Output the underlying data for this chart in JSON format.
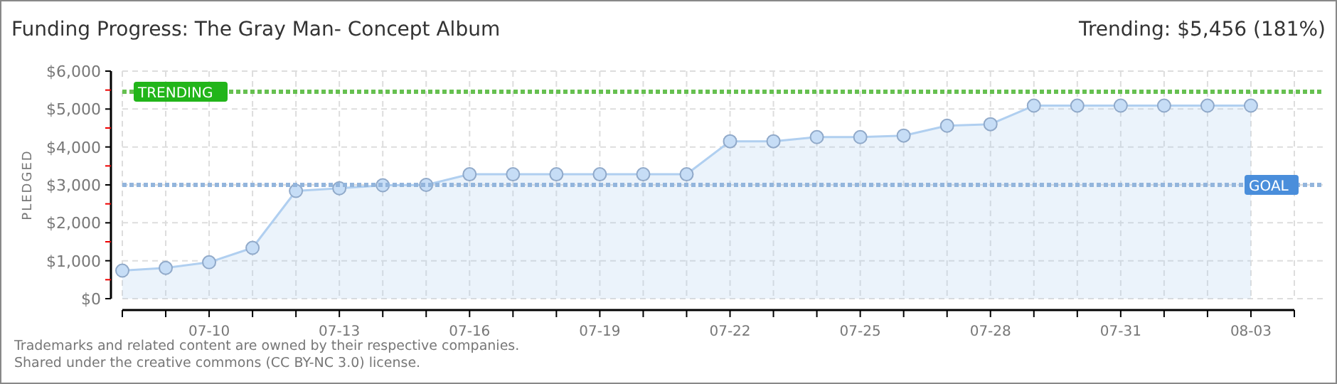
{
  "chart_data": {
    "type": "area",
    "title": "Funding Progress: The Gray Man- Concept Album",
    "subtitle": "Trending: $5,456 (181%)",
    "ylabel": "PLEDGED",
    "annotations": [
      "Trademarks and related content are owned by their respective companies.",
      "Shared under the creative commons (CC BY-NC 3.0) license."
    ],
    "x": [
      "--07-08",
      "--07-09",
      "--07-10",
      "--07-11",
      "--07-12",
      "--07-13",
      "--07-14",
      "--07-15",
      "--07-16",
      "--07-17",
      "--07-18",
      "--07-19",
      "--07-20",
      "--07-21",
      "--07-22",
      "--07-23",
      "--07-24",
      "--07-25",
      "--07-26",
      "--07-27",
      "--07-28",
      "--07-29",
      "--07-30",
      "--07-31",
      "--08-01",
      "--08-02",
      "--08-03"
    ],
    "series": [
      {
        "color": "#b0cff0",
        "values": [
          740,
          810,
          960,
          1340,
          2840,
          2910,
          2990,
          3000,
          3280,
          3280,
          3280,
          3280,
          3280,
          3280,
          4150,
          4150,
          4260,
          4260,
          4300,
          4560,
          4600,
          5090,
          5090,
          5090,
          5090,
          5090,
          5090
        ]
      }
    ],
    "xlim": [
      "--07-08",
      "--08-04"
    ],
    "xticks": [
      {
        "value": "--07-08",
        "label": null
      },
      {
        "value": "--07-09",
        "label": null
      },
      {
        "value": "--07-10",
        "label": "07-10"
      },
      {
        "value": "--07-11",
        "label": null
      },
      {
        "value": "--07-12",
        "label": null
      },
      {
        "value": "--07-13",
        "label": "07-13"
      },
      {
        "value": "--07-14",
        "label": null
      },
      {
        "value": "--07-15",
        "label": null
      },
      {
        "value": "--07-16",
        "label": "07-16"
      },
      {
        "value": "--07-17",
        "label": null
      },
      {
        "value": "--07-18",
        "label": null
      },
      {
        "value": "--07-19",
        "label": "07-19"
      },
      {
        "value": "--07-20",
        "label": null
      },
      {
        "value": "--07-21",
        "label": null
      },
      {
        "value": "--07-22",
        "label": "07-22"
      },
      {
        "value": "--07-23",
        "label": null
      },
      {
        "value": "--07-24",
        "label": null
      },
      {
        "value": "--07-25",
        "label": "07-25"
      },
      {
        "value": "--07-26",
        "label": null
      },
      {
        "value": "--07-27",
        "label": null
      },
      {
        "value": "--07-28",
        "label": "07-28"
      },
      {
        "value": "--07-29",
        "label": null
      },
      {
        "value": "--07-30",
        "label": null
      },
      {
        "value": "--07-31",
        "label": "07-31"
      },
      {
        "value": "--08-01",
        "label": null
      },
      {
        "value": "--08-02",
        "label": null
      },
      {
        "value": "--08-03",
        "label": "08-03"
      },
      {
        "value": "--08-04",
        "label": null
      }
    ],
    "ylim": [
      0,
      6000
    ],
    "yticks": [
      {
        "value": 0,
        "label": "$0"
      },
      {
        "value": 500,
        "label": null
      },
      {
        "value": 1000,
        "label": "$1,000"
      },
      {
        "value": 1500,
        "label": null
      },
      {
        "value": 2000,
        "label": "$2,000"
      },
      {
        "value": 2500,
        "label": null
      },
      {
        "value": 3000,
        "label": "$3,000"
      },
      {
        "value": 3500,
        "label": null
      },
      {
        "value": 4000,
        "label": "$4,000"
      },
      {
        "value": 4500,
        "label": null
      },
      {
        "value": 5000,
        "label": "$5,000"
      },
      {
        "value": 5500,
        "label": null
      },
      {
        "value": 6000,
        "label": "$6,000"
      }
    ],
    "ref_lines": [
      {
        "axis": "y",
        "value": 5456,
        "label": "TRENDING",
        "color": "#66c050",
        "line_style": "dotted"
      },
      {
        "axis": "y",
        "value": 3000,
        "label": "GOAL",
        "color": "#93b5dc",
        "line_style": "dotted"
      }
    ],
    "grid": true,
    "marker": "circle"
  }
}
